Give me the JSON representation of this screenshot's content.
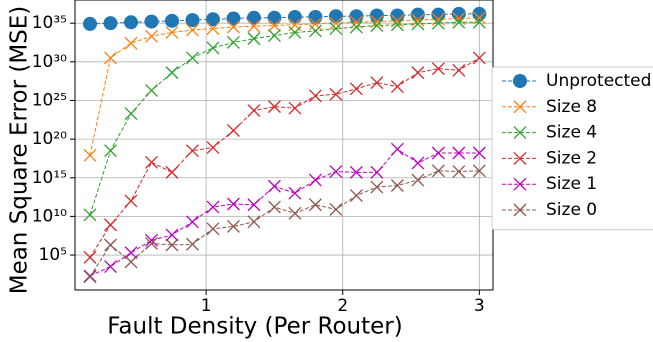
{
  "chart_data": {
    "type": "line",
    "log_y": true,
    "grid": true,
    "legend_position": "right",
    "xlabel": "Fault Density (Per Router)",
    "ylabel": "Mean Square Error (MSE)",
    "xlim": [
      0.04,
      3.1
    ],
    "ylim": [
      3,
      1e+38
    ],
    "xticks": [
      1,
      2,
      3
    ],
    "yticks": [
      {
        "value": 100000.0,
        "label": "10⁵"
      },
      {
        "value": 10000000000.0,
        "label": "10¹⁰"
      },
      {
        "value": 1000000000000000.0,
        "label": "10¹⁵"
      },
      {
        "value": 1e+20,
        "label": "10²⁰"
      },
      {
        "value": 1e+25,
        "label": "10²⁵"
      },
      {
        "value": 1e+30,
        "label": "10³⁰"
      },
      {
        "value": 1e+35,
        "label": "10³⁵"
      }
    ],
    "x": [
      0.15,
      0.3,
      0.45,
      0.6,
      0.75,
      0.9,
      1.05,
      1.2,
      1.35,
      1.5,
      1.65,
      1.8,
      1.95,
      2.1,
      2.25,
      2.4,
      2.55,
      2.7,
      2.85,
      3.0
    ],
    "series": [
      {
        "name": "Unprotected",
        "color": "#1f77b4",
        "marker": "o",
        "values": [
          8e+34,
          1e+35,
          1.3e+35,
          1.6e+35,
          2e+35,
          2.5e+35,
          3.2e+35,
          4e+35,
          5e+35,
          5e+35,
          6.3e+35,
          6.3e+35,
          8e+35,
          8e+35,
          1e+36,
          1e+36,
          1.3e+36,
          1.3e+36,
          1.6e+36,
          1.6e+36
        ]
      },
      {
        "name": "Size 8",
        "color": "#ff7f0e",
        "marker": "x",
        "values": [
          8e+17,
          3.2e+30,
          2.5e+32,
          2e+33,
          6.3e+33,
          1.3e+34,
          2e+34,
          3.2e+34,
          4e+34,
          5e+34,
          6.3e+34,
          8e+34,
          1e+35,
          1.3e+35,
          1.6e+35,
          2e+35,
          2.5e+35,
          3.2e+35,
          4e+35,
          5e+35
        ]
      },
      {
        "name": "Size 4",
        "color": "#2ca02c",
        "marker": "x",
        "values": [
          16000000000.0,
          3.2e+18,
          2e+23,
          2e+26,
          4e+28,
          3.2e+30,
          6.3e+31,
          3.2e+32,
          1e+33,
          2.5e+33,
          6.3e+33,
          1e+34,
          2e+34,
          3.2e+34,
          5e+34,
          6.3e+34,
          8e+34,
          1e+35,
          1.3e+35,
          1.3e+35
        ]
      },
      {
        "name": "Size 2",
        "color": "#d62728",
        "marker": "x",
        "values": [
          50000.0,
          800000000.0,
          1000000000000.0,
          1e+17,
          5000000000000000.0,
          3.2e+18,
          8e+18,
          1.3e+21,
          5e+23,
          1.6e+24,
          1e+24,
          4e+25,
          6.3e+25,
          3.2e+26,
          2e+27,
          6.3e+26,
          4e+28,
          1.3e+29,
          8e+28,
          3.2e+30
        ]
      },
      {
        "name": "Size 1",
        "color": "#bf00bf",
        "marker": "x",
        "values": [
          200,
          3200,
          200000.0,
          8000000.0,
          40000000.0,
          2000000000.0,
          160000000000.0,
          400000000000.0,
          320000000000.0,
          80000000000000.0,
          10000000000000.0,
          500000000000000.0,
          6300000000000000.0,
          5000000000000000.0,
          5000000000000000.0,
          5e+18,
          8e+16,
          1.6e+18,
          1.6e+18,
          1.6e+18
        ]
      },
      {
        "name": "Size 0",
        "color": "#8c564b",
        "marker": "x",
        "values": [
          160,
          2000000.0,
          13000.0,
          3200000.0,
          2000000.0,
          2500000.0,
          250000000.0,
          500000000.0,
          2000000000.0,
          160000000000.0,
          25000000000.0,
          320000000000.0,
          80000000000.0,
          5000000000000.0,
          63000000000000.0,
          100000000000000.0,
          500000000000000.0,
          8000000000000000.0,
          6300000000000000.0,
          8000000000000000.0
        ]
      }
    ]
  }
}
